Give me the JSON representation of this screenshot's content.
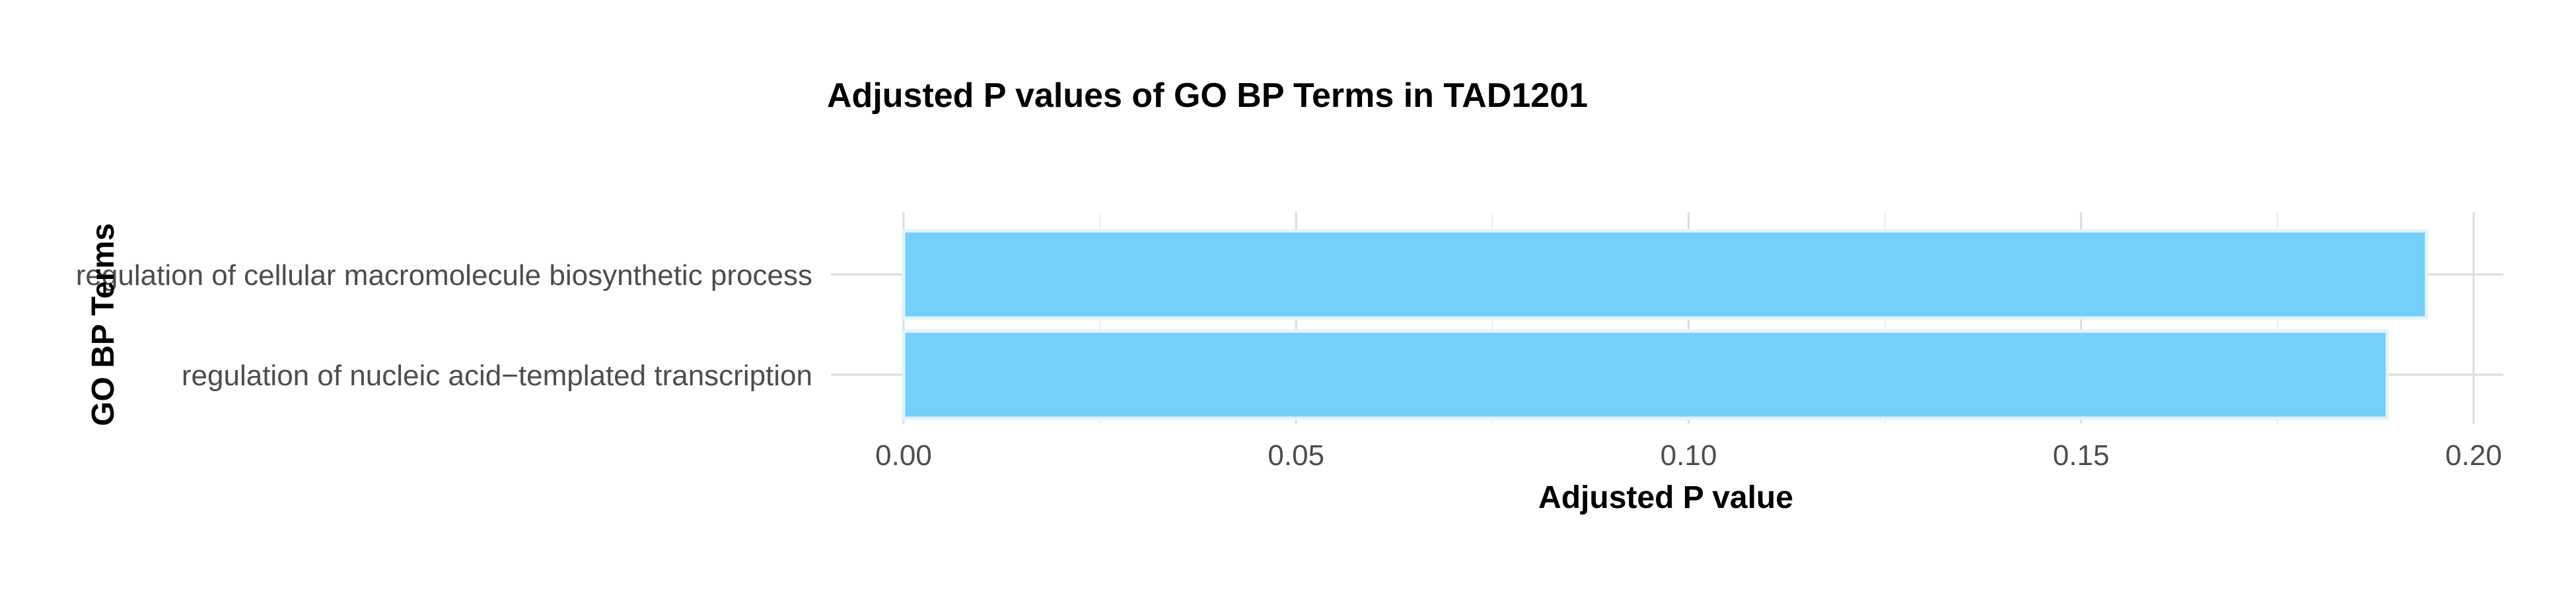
{
  "chart_data": {
    "type": "bar",
    "orientation": "horizontal",
    "title": "Adjusted P values of GO BP Terms in TAD1201",
    "xlabel": "Adjusted P value",
    "ylabel": "GO BP Terms",
    "categories": [
      "regulation of cellular macromolecule biosynthetic process",
      "regulation of nucleic acid−templated transcription"
    ],
    "values": [
      0.194,
      0.189
    ],
    "xlim": [
      0,
      0.2
    ],
    "xticks": [
      0.0,
      0.05,
      0.1,
      0.15,
      0.2
    ],
    "xtick_labels": [
      "0.00",
      "0.05",
      "0.10",
      "0.15",
      "0.20"
    ],
    "grid": true,
    "legend": "none",
    "colors": {
      "bar_fill": "#74CFFB",
      "bar_stroke": "#E3F3FC",
      "grid_major": "#DCDCDC",
      "grid_minor": "#EDEDED",
      "tick_text": "#4D4D4D",
      "title_text": "#000000"
    }
  }
}
